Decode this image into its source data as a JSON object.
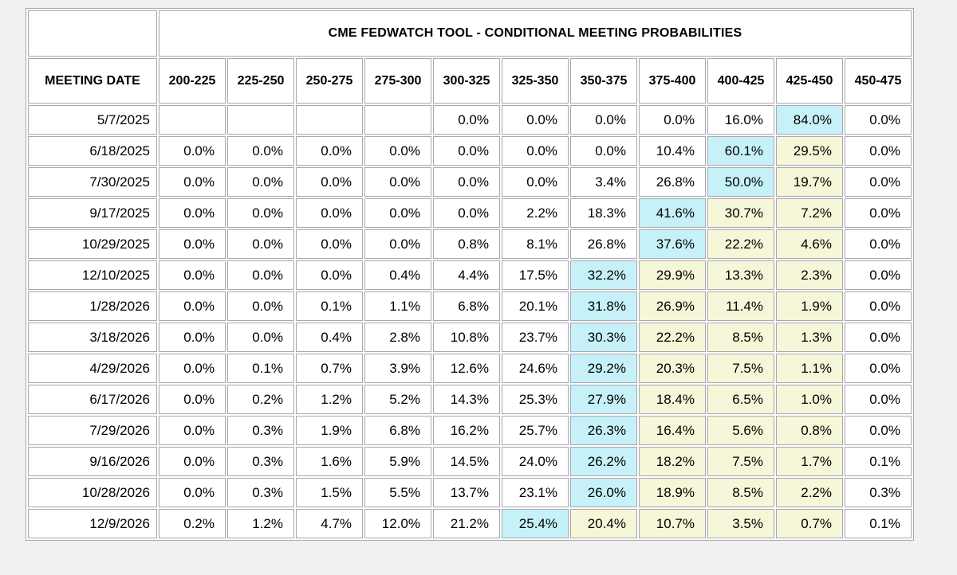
{
  "page": {
    "background_color": "#f1f1ef"
  },
  "chart_data": {
    "type": "table",
    "title": "CME FEDWATCH TOOL - CONDITIONAL MEETING PROBABILITIES",
    "date_column_header": "MEETING DATE",
    "rate_columns": [
      "200-225",
      "225-250",
      "250-275",
      "275-300",
      "300-325",
      "325-350",
      "350-375",
      "375-400",
      "400-425",
      "425-450",
      "450-475"
    ],
    "colors": {
      "max_probability_highlight": "#c6f1f8",
      "trailing_band_highlight": "#f6f6d8",
      "border": "#a7a7b0",
      "cell_background": "#ffffff"
    },
    "rows": [
      {
        "date": "5/7/2025",
        "values": [
          "",
          "",
          "",
          "",
          "0.0%",
          "0.0%",
          "0.0%",
          "0.0%",
          "16.0%",
          "84.0%",
          "0.0%"
        ],
        "max_col": 9,
        "band_cols": []
      },
      {
        "date": "6/18/2025",
        "values": [
          "0.0%",
          "0.0%",
          "0.0%",
          "0.0%",
          "0.0%",
          "0.0%",
          "0.0%",
          "10.4%",
          "60.1%",
          "29.5%",
          "0.0%"
        ],
        "max_col": 8,
        "band_cols": [
          9
        ]
      },
      {
        "date": "7/30/2025",
        "values": [
          "0.0%",
          "0.0%",
          "0.0%",
          "0.0%",
          "0.0%",
          "0.0%",
          "3.4%",
          "26.8%",
          "50.0%",
          "19.7%",
          "0.0%"
        ],
        "max_col": 8,
        "band_cols": [
          9
        ]
      },
      {
        "date": "9/17/2025",
        "values": [
          "0.0%",
          "0.0%",
          "0.0%",
          "0.0%",
          "0.0%",
          "2.2%",
          "18.3%",
          "41.6%",
          "30.7%",
          "7.2%",
          "0.0%"
        ],
        "max_col": 7,
        "band_cols": [
          8,
          9
        ]
      },
      {
        "date": "10/29/2025",
        "values": [
          "0.0%",
          "0.0%",
          "0.0%",
          "0.0%",
          "0.8%",
          "8.1%",
          "26.8%",
          "37.6%",
          "22.2%",
          "4.6%",
          "0.0%"
        ],
        "max_col": 7,
        "band_cols": [
          8,
          9
        ]
      },
      {
        "date": "12/10/2025",
        "values": [
          "0.0%",
          "0.0%",
          "0.0%",
          "0.4%",
          "4.4%",
          "17.5%",
          "32.2%",
          "29.9%",
          "13.3%",
          "2.3%",
          "0.0%"
        ],
        "max_col": 6,
        "band_cols": [
          7,
          8,
          9
        ]
      },
      {
        "date": "1/28/2026",
        "values": [
          "0.0%",
          "0.0%",
          "0.1%",
          "1.1%",
          "6.8%",
          "20.1%",
          "31.8%",
          "26.9%",
          "11.4%",
          "1.9%",
          "0.0%"
        ],
        "max_col": 6,
        "band_cols": [
          7,
          8,
          9
        ]
      },
      {
        "date": "3/18/2026",
        "values": [
          "0.0%",
          "0.0%",
          "0.4%",
          "2.8%",
          "10.8%",
          "23.7%",
          "30.3%",
          "22.2%",
          "8.5%",
          "1.3%",
          "0.0%"
        ],
        "max_col": 6,
        "band_cols": [
          7,
          8,
          9
        ]
      },
      {
        "date": "4/29/2026",
        "values": [
          "0.0%",
          "0.1%",
          "0.7%",
          "3.9%",
          "12.6%",
          "24.6%",
          "29.2%",
          "20.3%",
          "7.5%",
          "1.1%",
          "0.0%"
        ],
        "max_col": 6,
        "band_cols": [
          7,
          8,
          9
        ]
      },
      {
        "date": "6/17/2026",
        "values": [
          "0.0%",
          "0.2%",
          "1.2%",
          "5.2%",
          "14.3%",
          "25.3%",
          "27.9%",
          "18.4%",
          "6.5%",
          "1.0%",
          "0.0%"
        ],
        "max_col": 6,
        "band_cols": [
          7,
          8,
          9
        ]
      },
      {
        "date": "7/29/2026",
        "values": [
          "0.0%",
          "0.3%",
          "1.9%",
          "6.8%",
          "16.2%",
          "25.7%",
          "26.3%",
          "16.4%",
          "5.6%",
          "0.8%",
          "0.0%"
        ],
        "max_col": 6,
        "band_cols": [
          7,
          8,
          9
        ]
      },
      {
        "date": "9/16/2026",
        "values": [
          "0.0%",
          "0.3%",
          "1.6%",
          "5.9%",
          "14.5%",
          "24.0%",
          "26.2%",
          "18.2%",
          "7.5%",
          "1.7%",
          "0.1%"
        ],
        "max_col": 6,
        "band_cols": [
          7,
          8,
          9
        ]
      },
      {
        "date": "10/28/2026",
        "values": [
          "0.0%",
          "0.3%",
          "1.5%",
          "5.5%",
          "13.7%",
          "23.1%",
          "26.0%",
          "18.9%",
          "8.5%",
          "2.2%",
          "0.3%"
        ],
        "max_col": 6,
        "band_cols": [
          7,
          8,
          9
        ]
      },
      {
        "date": "12/9/2026",
        "values": [
          "0.2%",
          "1.2%",
          "4.7%",
          "12.0%",
          "21.2%",
          "25.4%",
          "20.4%",
          "10.7%",
          "3.5%",
          "0.7%",
          "0.1%"
        ],
        "max_col": 5,
        "band_cols": [
          6,
          7,
          8,
          9
        ]
      }
    ]
  }
}
